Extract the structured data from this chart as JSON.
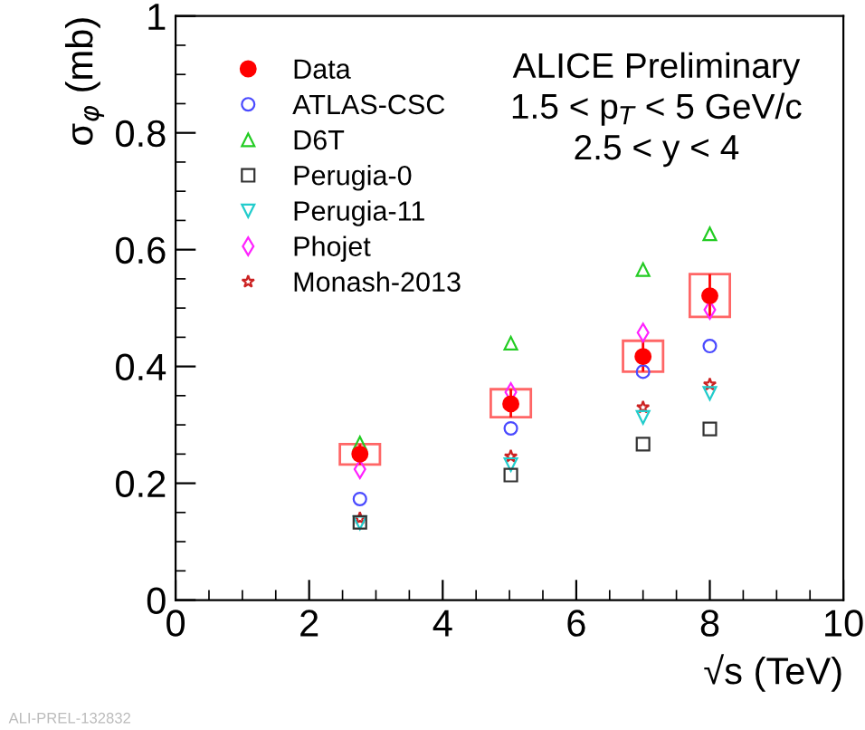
{
  "chart_data": {
    "type": "scatter",
    "xlabel": "√s (TeV)",
    "ylabel": "σ$_{φ}$ (mb)",
    "x": [
      2.76,
      5.02,
      7,
      8
    ],
    "series": [
      {
        "name": "Data",
        "color": "#ff0000",
        "marker": "circle",
        "values": [
          0.25,
          0.336,
          0.417,
          0.521
        ],
        "errors": [
          [
            0.232,
            0.267
          ],
          [
            0.313,
            0.361
          ],
          [
            0.391,
            0.444
          ],
          [
            0.485,
            0.558
          ]
        ]
      },
      {
        "name": "ATLAS-CSC",
        "color": "#4a4aff",
        "marker": "circle_open",
        "values": [
          0.173,
          0.294,
          0.391,
          0.435
        ]
      },
      {
        "name": "D6T",
        "color": "#22cc22",
        "marker": "triangle_open",
        "values": [
          0.269,
          0.44,
          0.566,
          0.627
        ]
      },
      {
        "name": "Perugia-0",
        "color": "#333333",
        "marker": "square_open",
        "values": [
          0.133,
          0.214,
          0.267,
          0.293
        ]
      },
      {
        "name": "Perugia-11",
        "color": "#22cccc",
        "marker": "triangle_down_open",
        "values": [
          0.132,
          0.232,
          0.313,
          0.354
        ]
      },
      {
        "name": "Phojet",
        "color": "#ff22ff",
        "marker": "diamond_open",
        "values": [
          0.224,
          0.356,
          0.458,
          0.497
        ]
      },
      {
        "name": "Monash-2013",
        "color": "#cc2222",
        "marker": "star_open",
        "values": [
          0.14,
          0.246,
          0.33,
          0.369
        ]
      }
    ],
    "xlim": [
      0,
      10
    ],
    "ylim": [
      0,
      1
    ],
    "xticks": [
      0,
      2,
      4,
      6,
      8,
      10
    ],
    "yticks": [
      0,
      0.2,
      0.4,
      0.6,
      0.8,
      1
    ],
    "grid": false,
    "legend": "top left",
    "annotations": [
      "ALICE Preliminary",
      "1.5 < p$_{T}$ < 5 GeV/c",
      "2.5 < y < 4",
      "ALI-PREL-132832"
    ]
  }
}
